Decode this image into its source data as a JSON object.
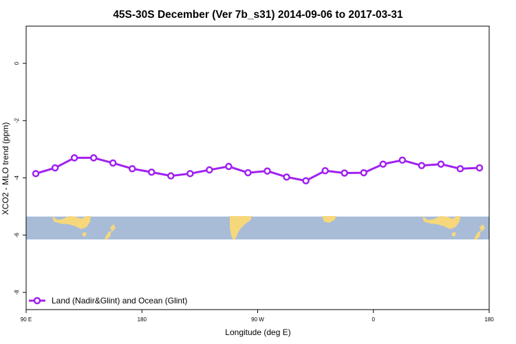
{
  "chart_data": {
    "type": "line",
    "title": "45S-30S December (Ver 7b_s31)   2014-09-06 to 2017-03-31",
    "xlabel": "Longitude (deg E)",
    "ylabel": "XCO2 - MLO trend (ppm)",
    "xlim": [
      90,
      450
    ],
    "ylim": [
      -8.6,
      1.3
    ],
    "x_ticks": [
      {
        "value": 90,
        "label": "90 E"
      },
      {
        "value": 180,
        "label": "180"
      },
      {
        "value": 270,
        "label": "90 W"
      },
      {
        "value": 360,
        "label": "0"
      },
      {
        "value": 450,
        "label": "180"
      }
    ],
    "y_ticks": [
      {
        "value": 0,
        "label": "0"
      },
      {
        "value": -2,
        "label": "-2"
      },
      {
        "value": -4,
        "label": "-4"
      },
      {
        "value": -6,
        "label": "-6"
      },
      {
        "value": -8,
        "label": "-8"
      }
    ],
    "grid": false,
    "legend_position": "bottom-left",
    "series": [
      {
        "name": "Land (Nadir&Glint) and Ocean (Glint)",
        "color": "#a020f0",
        "x": [
          97.5,
          112.5,
          127.5,
          142.5,
          157.5,
          172.5,
          187.5,
          202.5,
          217.5,
          232.5,
          247.5,
          262.5,
          277.5,
          292.5,
          307.5,
          322.5,
          337.5,
          352.5,
          367.5,
          382.5,
          397.5,
          412.5,
          427.5,
          442.5
        ],
        "values": [
          -3.85,
          -3.65,
          -3.3,
          -3.3,
          -3.48,
          -3.68,
          -3.8,
          -3.93,
          -3.85,
          -3.72,
          -3.6,
          -3.82,
          -3.76,
          -3.97,
          -4.1,
          -3.75,
          -3.83,
          -3.82,
          -3.52,
          -3.38,
          -3.57,
          -3.52,
          -3.68,
          -3.65
        ]
      }
    ],
    "map_band": {
      "y_top": -5.35,
      "y_bottom": -6.15,
      "ocean_color": "#a8bcd8",
      "land_color": "#f6d77b"
    }
  }
}
